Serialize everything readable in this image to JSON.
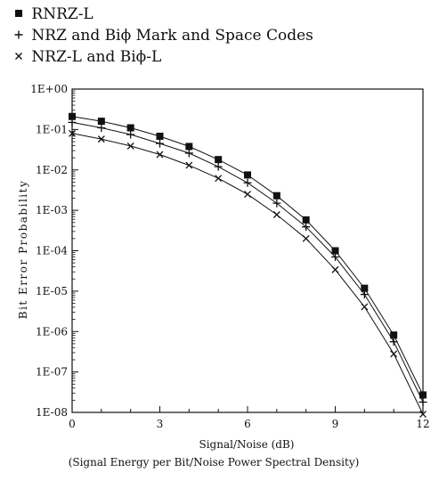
{
  "chart_data": {
    "type": "line",
    "xlabel": "Signal/Noise (dB)",
    "xlabel_note": "(Signal Energy per Bit/Noise Power Spectral Density)",
    "ylabel": "Bit Error Probability",
    "y_scale": "log",
    "xlim": [
      0,
      12
    ],
    "ylim": [
      1e-08,
      1
    ],
    "x_ticks": [
      0,
      3,
      6,
      9,
      12
    ],
    "y_ticks": [
      {
        "value": 1,
        "label": "1E+00"
      },
      {
        "value": 0.1,
        "label": "1E-01"
      },
      {
        "value": 0.01,
        "label": "1E-02"
      },
      {
        "value": 0.001,
        "label": "1E-03"
      },
      {
        "value": 0.0001,
        "label": "1E-04"
      },
      {
        "value": 1e-05,
        "label": "1E-05"
      },
      {
        "value": 1e-06,
        "label": "1E-06"
      },
      {
        "value": 1e-07,
        "label": "1E-07"
      },
      {
        "value": 1e-08,
        "label": "1E-08"
      }
    ],
    "grid": false,
    "legend_position": "top-left, above plot",
    "x": [
      0,
      1,
      2,
      3,
      4,
      5,
      6,
      7,
      8,
      9,
      10,
      11,
      12
    ],
    "series": [
      {
        "name": "RNRZ-L",
        "marker": "square",
        "values": [
          0.21,
          0.16,
          0.11,
          0.068,
          0.038,
          0.018,
          0.0075,
          0.0023,
          0.00058,
          0.0001,
          1.18e-05,
          8.2e-07,
          2.7e-08
        ]
      },
      {
        "name": "NRZ and Biϕ Mark and Space Codes",
        "marker": "plus",
        "values": [
          0.15,
          0.11,
          0.075,
          0.045,
          0.026,
          0.012,
          0.0048,
          0.0015,
          0.00039,
          7e-05,
          8.3e-06,
          5.6e-07,
          1.8e-08
        ]
      },
      {
        "name": "NRZ-L and Biϕ-L",
        "marker": "cross",
        "values": [
          0.08,
          0.058,
          0.039,
          0.024,
          0.013,
          0.0062,
          0.0025,
          0.00078,
          0.0002,
          3.4e-05,
          4.1e-06,
          2.8e-07,
          9e-09
        ]
      }
    ]
  }
}
